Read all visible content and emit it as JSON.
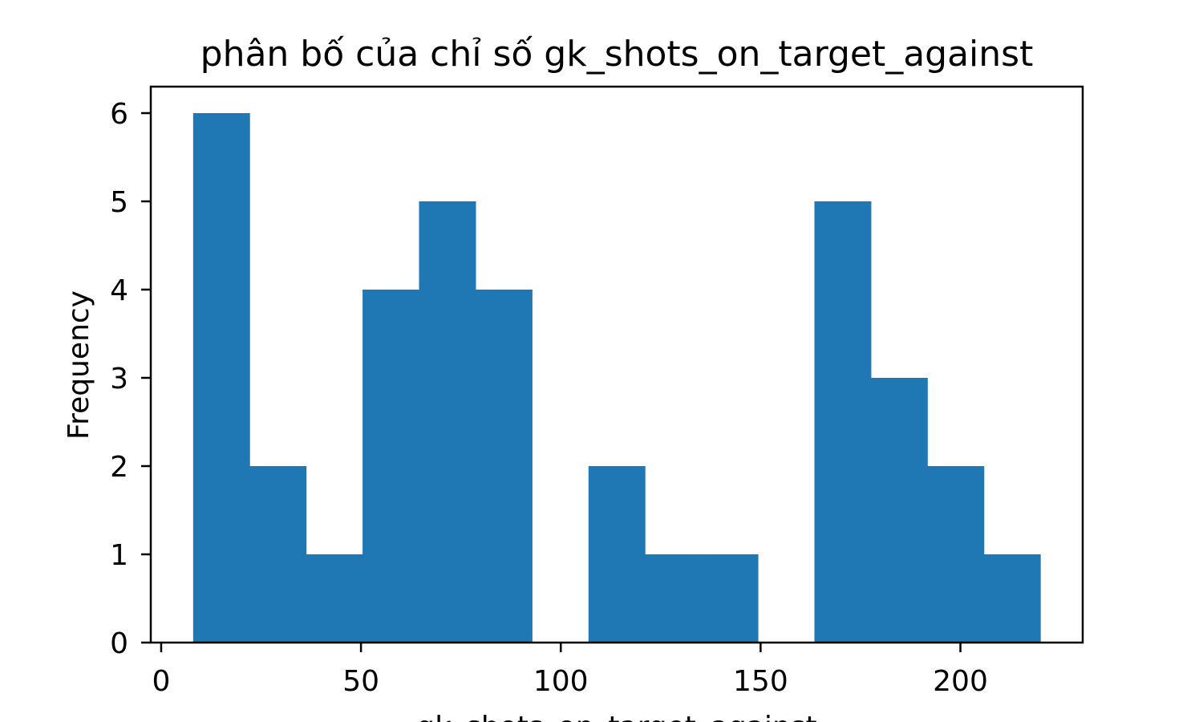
{
  "chart_data": {
    "type": "bar",
    "title": "phân bố của chỉ số gk_shots_on_target_against",
    "xlabel": "gk_shots_on_target_against",
    "ylabel": "Frequency",
    "bins": [
      {
        "start": 8.0,
        "end": 22.13,
        "count": 6
      },
      {
        "start": 22.13,
        "end": 36.27,
        "count": 2
      },
      {
        "start": 36.27,
        "end": 50.4,
        "count": 1
      },
      {
        "start": 50.4,
        "end": 64.53,
        "count": 4
      },
      {
        "start": 64.53,
        "end": 78.67,
        "count": 5
      },
      {
        "start": 78.67,
        "end": 92.8,
        "count": 4
      },
      {
        "start": 92.8,
        "end": 106.93,
        "count": 0
      },
      {
        "start": 106.93,
        "end": 121.07,
        "count": 2
      },
      {
        "start": 121.07,
        "end": 135.2,
        "count": 1
      },
      {
        "start": 135.2,
        "end": 149.33,
        "count": 1
      },
      {
        "start": 149.33,
        "end": 163.47,
        "count": 0
      },
      {
        "start": 163.47,
        "end": 177.6,
        "count": 5
      },
      {
        "start": 177.6,
        "end": 191.73,
        "count": 3
      },
      {
        "start": 191.73,
        "end": 205.87,
        "count": 2
      },
      {
        "start": 205.87,
        "end": 220.0,
        "count": 1
      }
    ],
    "xticks": [
      0,
      50,
      100,
      150,
      200
    ],
    "yticks": [
      0,
      1,
      2,
      3,
      4,
      5,
      6
    ],
    "xlim": [
      -2.6,
      230.6
    ],
    "ylim": [
      0,
      6.3
    ],
    "grid": false,
    "bar_color": "#1f77b4"
  }
}
